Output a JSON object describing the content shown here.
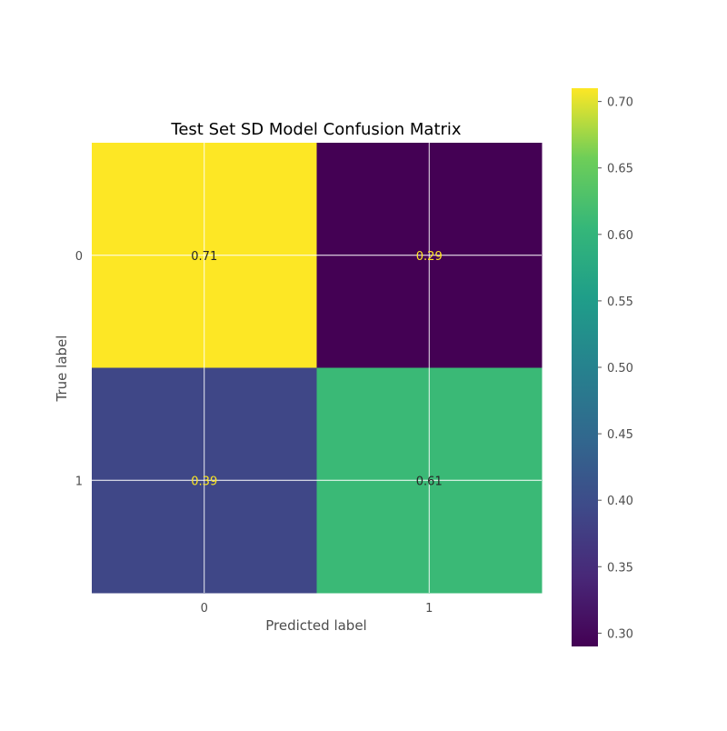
{
  "chart_data": {
    "type": "heatmap",
    "title": "Test Set SD Model Confusion Matrix",
    "xlabel": "Predicted label",
    "ylabel": "True label",
    "x_categories": [
      "0",
      "1"
    ],
    "y_categories": [
      "0",
      "1"
    ],
    "values": [
      [
        0.71,
        0.29
      ],
      [
        0.39,
        0.61
      ]
    ],
    "value_labels": [
      [
        "0.71",
        "0.29"
      ],
      [
        "0.39",
        "0.61"
      ]
    ],
    "grid": true,
    "colormap": "viridis",
    "colorbar": {
      "range": [
        0.29,
        0.71
      ],
      "ticks": [
        0.3,
        0.35,
        0.4,
        0.45,
        0.5,
        0.55,
        0.6,
        0.65,
        0.7
      ],
      "tick_labels": [
        "0.30",
        "0.35",
        "0.40",
        "0.45",
        "0.50",
        "0.55",
        "0.60",
        "0.65",
        "0.70"
      ],
      "placement": "right"
    },
    "colors": {
      "grid": "#ffffff",
      "dark_text": "#262626",
      "light_text": "#fde725",
      "axis_text": "#4d4d4d",
      "tick_mark": "#555555"
    }
  }
}
